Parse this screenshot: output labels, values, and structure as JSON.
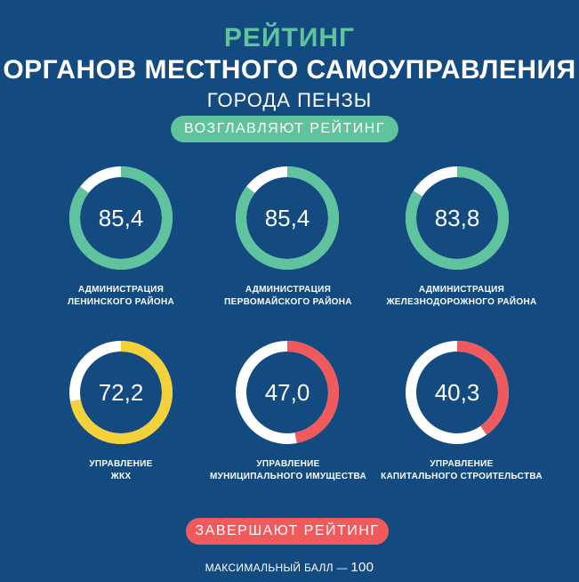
{
  "header": {
    "title_top": "РЕЙТИНГ",
    "title_main": "ОРГАНОВ МЕСТНОГО САМОУПРАВЛЕНИЯ",
    "title_sub": "ГОРОДА ПЕНЗЫ"
  },
  "labels": {
    "leaders": "ВОЗГЛАВЛЯЮТ РЕЙТИНГ",
    "trailers": "ЗАВЕРШАЮТ РЕЙТИНГ",
    "max_score_text": "МАКСИМАЛЬНЫЙ БАЛЛ —",
    "max_score_value": "100"
  },
  "colors": {
    "background": "#134b80",
    "green": "#5fc39e",
    "yellow": "#f2d13a",
    "red": "#f15a5c",
    "track": "#ffffff"
  },
  "chart_data": {
    "type": "donut",
    "max": 100,
    "items": [
      {
        "value": 85.4,
        "display": "85,4",
        "name_line1": "АДМИНИСТРАЦИЯ",
        "name_line2": "ЛЕНИНСКОГО РАЙОНА",
        "color": "#5fc39e"
      },
      {
        "value": 85.4,
        "display": "85,4",
        "name_line1": "АДМИНИСТРАЦИЯ",
        "name_line2": "ПЕРВОМАЙСКОГО РАЙОНА",
        "color": "#5fc39e"
      },
      {
        "value": 83.8,
        "display": "83,8",
        "name_line1": "АДМИНИСТРАЦИЯ",
        "name_line2": "ЖЕЛЕЗНОДОРОЖНОГО РАЙОНА",
        "color": "#5fc39e"
      },
      {
        "value": 72.2,
        "display": "72,2",
        "name_line1": "УПРАВЛЕНИЕ",
        "name_line2": "ЖКХ",
        "color": "#f2d13a"
      },
      {
        "value": 47.0,
        "display": "47,0",
        "name_line1": "УПРАВЛЕНИЕ",
        "name_line2": "МУНИЦИПАЛЬНОГО ИМУЩЕСТВА",
        "color": "#f15a5c"
      },
      {
        "value": 40.3,
        "display": "40,3",
        "name_line1": "УПРАВЛЕНИЕ",
        "name_line2": "КАПИТАЛЬНОГО СТРОИТЕЛЬСТВА",
        "color": "#f15a5c"
      }
    ]
  }
}
